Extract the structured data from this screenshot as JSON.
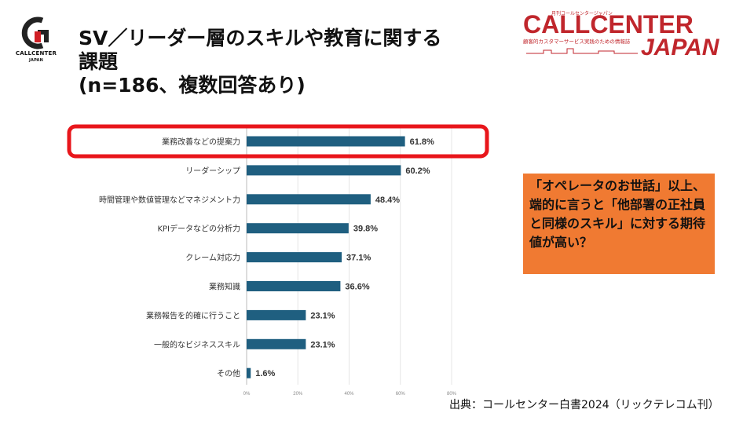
{
  "header": {
    "title": "SV／リーダー層のスキルや教育に関する\n課題\n(n=186、複数回答あり)",
    "left_logo": "CALLCENTER JAPAN",
    "right_logo": {
      "main_top": "CALLCENTER",
      "main_bottom": "JAPAN",
      "tagline_top": "月刊コールセンタージャパン",
      "tagline": "顧客的カスタマーサービス実践のための情報誌"
    }
  },
  "chart_data": {
    "type": "bar",
    "orientation": "horizontal",
    "categories": [
      "業務改善などの提案力",
      "リーダーシップ",
      "時間管理や数値管理などマネジメント力",
      "KPIデータなどの分析力",
      "クレーム対応力",
      "業務知識",
      "業務報告を的確に行うこと",
      "一般的なビジネススキル",
      "その他"
    ],
    "values": [
      61.8,
      60.2,
      48.4,
      39.8,
      37.1,
      36.6,
      23.1,
      23.1,
      1.6
    ],
    "value_labels": [
      "61.8%",
      "60.2%",
      "48.4%",
      "39.8%",
      "37.1%",
      "36.6%",
      "23.1%",
      "23.1%",
      "1.6%"
    ],
    "xlim": [
      0,
      80
    ],
    "x_ticks": [
      0,
      20,
      40,
      60,
      80
    ],
    "x_tick_labels": [
      "0%",
      "20%",
      "40%",
      "60%",
      "80%"
    ],
    "grid": true,
    "bar_color": "#1f5f80",
    "highlight_category_index": 0,
    "highlight_color": "#e8161b"
  },
  "callout": {
    "text": "「オペレータのお世話」以上、端的に言うと「他部署の正社員と同様のスキル」に対する期待値が高い？",
    "color": "#f07a32"
  },
  "source": "出典：コールセンター白書2024（リックテレコム刊）"
}
